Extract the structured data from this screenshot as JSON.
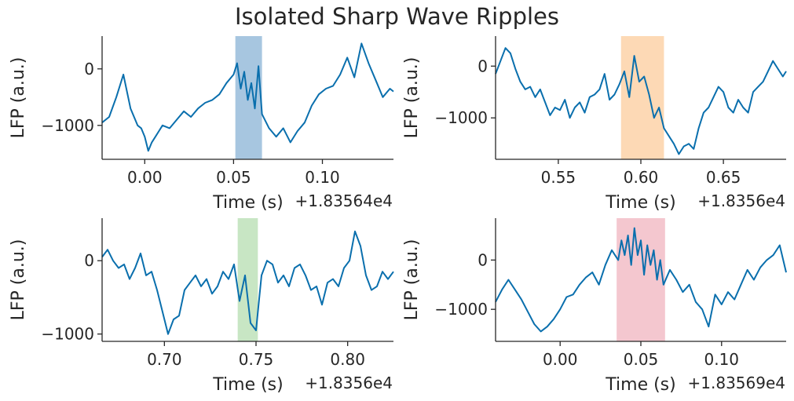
{
  "title": "Isolated Sharp Wave Ripples",
  "chart_data": [
    {
      "type": "line",
      "ylabel": "LFP (a.u.)",
      "xlabel": "Time (s)",
      "offset_label": "+1.83564e4",
      "xlim": [
        -0.024,
        0.14
      ],
      "ylim": [
        -1600,
        580
      ],
      "xticks": [
        0.0,
        0.05,
        0.1
      ],
      "xtick_labels": [
        "0.00",
        "0.05",
        "0.10"
      ],
      "yticks": [
        0,
        -1000
      ],
      "ytick_labels": [
        "0",
        "−1000"
      ],
      "highlight": {
        "x_start": 0.051,
        "x_end": 0.066,
        "color": "#a7c6e0"
      },
      "line_color": "#0a6fad",
      "x": [
        -0.024,
        -0.02,
        -0.016,
        -0.012,
        -0.008,
        -0.006,
        -0.004,
        -0.002,
        0.0,
        0.002,
        0.004,
        0.006,
        0.008,
        0.01,
        0.014,
        0.018,
        0.022,
        0.026,
        0.03,
        0.034,
        0.038,
        0.042,
        0.046,
        0.05,
        0.052,
        0.054,
        0.056,
        0.058,
        0.06,
        0.062,
        0.064,
        0.066,
        0.07,
        0.074,
        0.078,
        0.082,
        0.086,
        0.09,
        0.094,
        0.098,
        0.102,
        0.106,
        0.11,
        0.114,
        0.118,
        0.122,
        0.126,
        0.13,
        0.134,
        0.138,
        0.14
      ],
      "y": [
        -950,
        -850,
        -500,
        -100,
        -700,
        -850,
        -1000,
        -1050,
        -1200,
        -1450,
        -1300,
        -1200,
        -1100,
        -1000,
        -1050,
        -900,
        -750,
        -850,
        -700,
        -600,
        -550,
        -450,
        -250,
        -100,
        100,
        -350,
        -50,
        -550,
        -250,
        -700,
        50,
        -800,
        -1050,
        -1200,
        -1050,
        -1300,
        -1100,
        -950,
        -650,
        -450,
        -350,
        -300,
        -100,
        200,
        -150,
        450,
        100,
        -200,
        -500,
        -350,
        -400
      ]
    },
    {
      "type": "line",
      "ylabel": "LFP (a.u.)",
      "xlabel": "Time (s)",
      "offset_label": "+1.8356e4",
      "xlim": [
        0.512,
        0.688
      ],
      "ylim": [
        -1800,
        580
      ],
      "xticks": [
        0.55,
        0.6,
        0.65
      ],
      "xtick_labels": [
        "0.55",
        "0.60",
        "0.65"
      ],
      "yticks": [
        0,
        -1000
      ],
      "ytick_labels": [
        "0",
        "−1000"
      ],
      "highlight": {
        "x_start": 0.588,
        "x_end": 0.614,
        "color": "#fdd9b5"
      },
      "line_color": "#0a6fad",
      "x": [
        0.512,
        0.515,
        0.518,
        0.521,
        0.524,
        0.527,
        0.53,
        0.533,
        0.536,
        0.539,
        0.542,
        0.545,
        0.548,
        0.551,
        0.554,
        0.557,
        0.56,
        0.563,
        0.566,
        0.569,
        0.572,
        0.575,
        0.578,
        0.581,
        0.584,
        0.587,
        0.59,
        0.593,
        0.596,
        0.599,
        0.602,
        0.605,
        0.608,
        0.611,
        0.614,
        0.617,
        0.62,
        0.623,
        0.626,
        0.629,
        0.632,
        0.635,
        0.638,
        0.641,
        0.644,
        0.647,
        0.65,
        0.653,
        0.656,
        0.659,
        0.662,
        0.665,
        0.668,
        0.671,
        0.674,
        0.677,
        0.68,
        0.683,
        0.686,
        0.688
      ],
      "y": [
        -150,
        100,
        350,
        250,
        -50,
        -300,
        -450,
        -400,
        -600,
        -450,
        -700,
        -950,
        -800,
        -850,
        -650,
        -1000,
        -800,
        -700,
        -900,
        -600,
        -550,
        -450,
        -150,
        -650,
        -550,
        -350,
        -100,
        -600,
        200,
        -300,
        -200,
        -550,
        -1000,
        -800,
        -1200,
        -1350,
        -1500,
        -1700,
        -1550,
        -1500,
        -1600,
        -1200,
        -900,
        -800,
        -600,
        -400,
        -500,
        -800,
        -900,
        -650,
        -800,
        -900,
        -500,
        -400,
        -300,
        -100,
        100,
        -50,
        -200,
        -100
      ]
    },
    {
      "type": "line",
      "ylabel": "LFP (a.u.)",
      "xlabel": "Time (s)",
      "offset_label": "+1.8356e4",
      "xlim": [
        0.666,
        0.825
      ],
      "ylim": [
        -1100,
        580
      ],
      "xticks": [
        0.7,
        0.75,
        0.8
      ],
      "xtick_labels": [
        "0.70",
        "0.75",
        "0.80"
      ],
      "yticks": [
        0,
        -1000
      ],
      "ytick_labels": [
        "0",
        "−1000"
      ],
      "highlight": {
        "x_start": 0.74,
        "x_end": 0.751,
        "color": "#c8e6c4"
      },
      "line_color": "#0a6fad",
      "x": [
        0.666,
        0.669,
        0.672,
        0.675,
        0.678,
        0.681,
        0.684,
        0.687,
        0.69,
        0.693,
        0.696,
        0.699,
        0.702,
        0.705,
        0.708,
        0.711,
        0.714,
        0.717,
        0.72,
        0.723,
        0.726,
        0.729,
        0.732,
        0.735,
        0.738,
        0.741,
        0.744,
        0.747,
        0.75,
        0.753,
        0.756,
        0.759,
        0.762,
        0.765,
        0.768,
        0.771,
        0.774,
        0.777,
        0.78,
        0.783,
        0.786,
        0.789,
        0.792,
        0.795,
        0.798,
        0.801,
        0.804,
        0.807,
        0.81,
        0.813,
        0.816,
        0.819,
        0.822,
        0.825
      ],
      "y": [
        50,
        150,
        0,
        -100,
        -50,
        -250,
        -100,
        100,
        -200,
        -150,
        -400,
        -700,
        -1000,
        -800,
        -750,
        -400,
        -300,
        -200,
        -350,
        -250,
        -450,
        -350,
        -150,
        -250,
        -50,
        -550,
        -200,
        -850,
        -950,
        -200,
        0,
        -50,
        -300,
        -200,
        -350,
        -100,
        -50,
        -200,
        -400,
        -350,
        -600,
        -300,
        -250,
        -350,
        -100,
        0,
        400,
        200,
        -200,
        -400,
        -350,
        -150,
        -250,
        -150
      ]
    },
    {
      "type": "line",
      "ylabel": "LFP (a.u.)",
      "xlabel": "Time (s)",
      "offset_label": "+1.83569e4",
      "xlim": [
        -0.04,
        0.14
      ],
      "ylim": [
        -1650,
        850
      ],
      "xticks": [
        0.0,
        0.05,
        0.1
      ],
      "xtick_labels": [
        "0.00",
        "0.05",
        "0.10"
      ],
      "yticks": [
        0,
        -1000
      ],
      "ytick_labels": [
        "0",
        "−1000"
      ],
      "highlight": {
        "x_start": 0.035,
        "x_end": 0.065,
        "color": "#f4c7cf"
      },
      "line_color": "#0a6fad",
      "x": [
        -0.04,
        -0.036,
        -0.032,
        -0.028,
        -0.024,
        -0.02,
        -0.016,
        -0.012,
        -0.008,
        -0.004,
        0.0,
        0.004,
        0.008,
        0.012,
        0.016,
        0.02,
        0.024,
        0.028,
        0.032,
        0.036,
        0.038,
        0.04,
        0.042,
        0.044,
        0.046,
        0.048,
        0.05,
        0.052,
        0.054,
        0.056,
        0.058,
        0.06,
        0.062,
        0.064,
        0.068,
        0.072,
        0.076,
        0.08,
        0.084,
        0.088,
        0.092,
        0.096,
        0.1,
        0.104,
        0.108,
        0.112,
        0.116,
        0.12,
        0.124,
        0.128,
        0.132,
        0.136,
        0.14
      ],
      "y": [
        -850,
        -600,
        -400,
        -600,
        -800,
        -1050,
        -1300,
        -1450,
        -1350,
        -1200,
        -1000,
        -750,
        -700,
        -500,
        -350,
        -250,
        -500,
        -100,
        200,
        0,
        400,
        100,
        500,
        -100,
        650,
        100,
        400,
        -300,
        300,
        -100,
        200,
        -400,
        0,
        -500,
        -200,
        -400,
        -650,
        -500,
        -850,
        -1000,
        -1350,
        -700,
        -900,
        -650,
        -800,
        -500,
        -200,
        -400,
        -150,
        0,
        100,
        300,
        -250
      ]
    }
  ]
}
